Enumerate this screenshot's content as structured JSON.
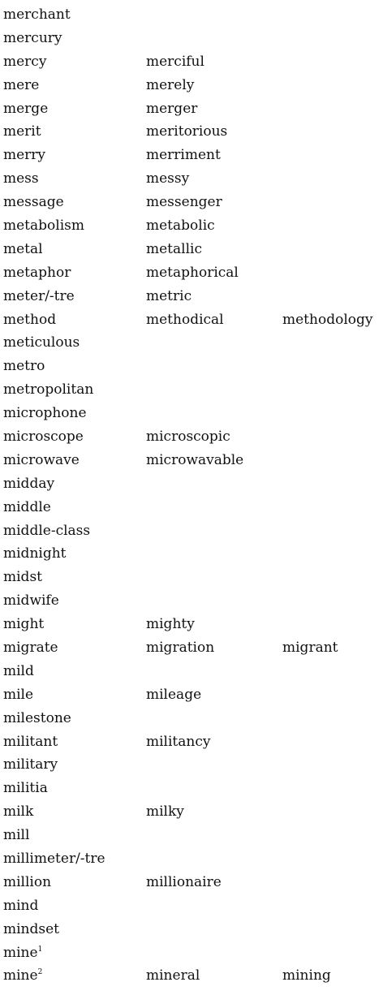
{
  "rows": [
    {
      "w1": "merchant",
      "w2": "",
      "w3": ""
    },
    {
      "w1": "mercury",
      "w2": "",
      "w3": ""
    },
    {
      "w1": "mercy",
      "w2": "merciful",
      "w3": ""
    },
    {
      "w1": "mere",
      "w2": "merely",
      "w3": ""
    },
    {
      "w1": "merge",
      "w2": "merger",
      "w3": ""
    },
    {
      "w1": "merit",
      "w2": "meritorious",
      "w3": ""
    },
    {
      "w1": "merry",
      "w2": "merriment",
      "w3": ""
    },
    {
      "w1": "mess",
      "w2": "messy",
      "w3": ""
    },
    {
      "w1": "message",
      "w2": "messenger",
      "w3": ""
    },
    {
      "w1": "metabolism",
      "w2": "metabolic",
      "w3": ""
    },
    {
      "w1": "metal",
      "w2": "metallic",
      "w3": ""
    },
    {
      "w1": "metaphor",
      "w2": "metaphorical",
      "w3": ""
    },
    {
      "w1": "meter/-tre",
      "w2": "metric",
      "w3": ""
    },
    {
      "w1": "method",
      "w2": "methodical",
      "w3": "methodology"
    },
    {
      "w1": "meticulous",
      "w2": "",
      "w3": ""
    },
    {
      "w1": "metro",
      "w2": "",
      "w3": ""
    },
    {
      "w1": "metropolitan",
      "w2": "",
      "w3": ""
    },
    {
      "w1": "microphone",
      "w2": "",
      "w3": ""
    },
    {
      "w1": "microscope",
      "w2": "microscopic",
      "w3": ""
    },
    {
      "w1": "microwave",
      "w2": "microwavable",
      "w3": ""
    },
    {
      "w1": "midday",
      "w2": "",
      "w3": ""
    },
    {
      "w1": "middle",
      "w2": "",
      "w3": ""
    },
    {
      "w1": "middle-class",
      "w2": "",
      "w3": ""
    },
    {
      "w1": "midnight",
      "w2": "",
      "w3": ""
    },
    {
      "w1": "midst",
      "w2": "",
      "w3": ""
    },
    {
      "w1": "midwife",
      "w2": "",
      "w3": ""
    },
    {
      "w1": "might",
      "w2": "mighty",
      "w3": ""
    },
    {
      "w1": "migrate",
      "w2": "migration",
      "w3": "migrant"
    },
    {
      "w1": "mild",
      "w2": "",
      "w3": ""
    },
    {
      "w1": "mile",
      "w2": "mileage",
      "w3": ""
    },
    {
      "w1": "milestone",
      "w2": "",
      "w3": ""
    },
    {
      "w1": "militant",
      "w2": "militancy",
      "w3": ""
    },
    {
      "w1": "military",
      "w2": "",
      "w3": ""
    },
    {
      "w1": "militia",
      "w2": "",
      "w3": ""
    },
    {
      "w1": "milk",
      "w2": "milky",
      "w3": ""
    },
    {
      "w1": "mill",
      "w2": "",
      "w3": ""
    },
    {
      "w1": "millimeter/-tre",
      "w2": "",
      "w3": ""
    },
    {
      "w1": "million",
      "w2": "millionaire",
      "w3": ""
    },
    {
      "w1": "mind",
      "w2": "",
      "w3": ""
    },
    {
      "w1": "mindset",
      "w2": "",
      "w3": ""
    },
    {
      "w1": "mine",
      "sup": "1",
      "w2": "",
      "w3": ""
    },
    {
      "w1": "mine",
      "sup": "2",
      "w2": "mineral",
      "w3": "mining"
    }
  ]
}
